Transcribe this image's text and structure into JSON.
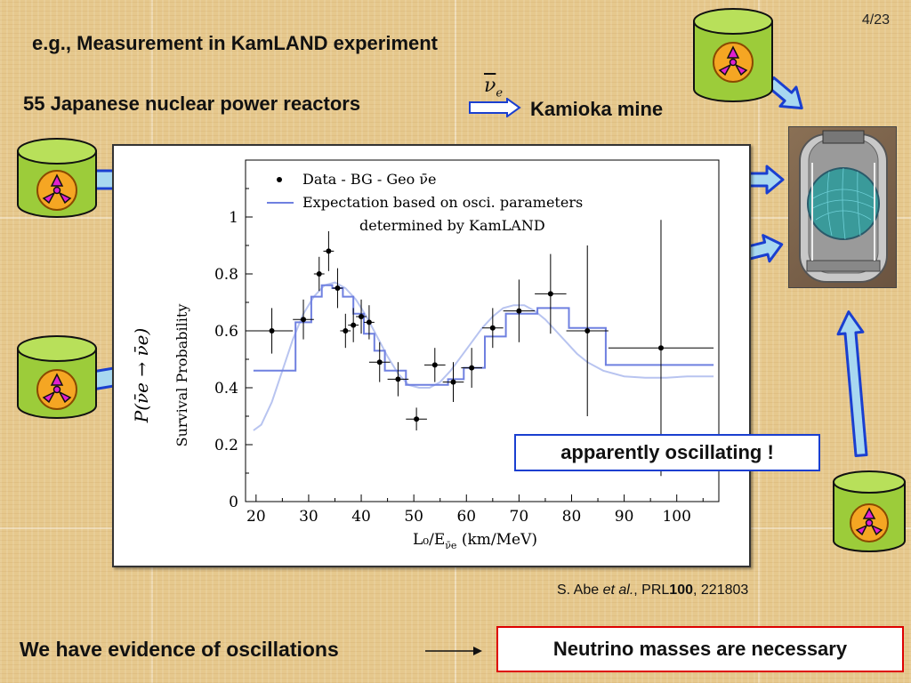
{
  "slide": {
    "page_number": "4/23",
    "title": "e.g., Measurement in KamLAND experiment",
    "reactors_label": "55 Japanese nuclear power reactors",
    "mine_label": "Kamioka mine",
    "nu_symbol": "ν",
    "nu_subscript": "e",
    "annotation": "apparently oscillating !",
    "citation_author": "S. Abe ",
    "citation_etal": "et al.",
    "citation_journal": ", PRL",
    "citation_volume": "100",
    "citation_page": ", 221803",
    "evidence": "We have evidence of oscillations",
    "conclusion": "Neutrino masses are necessary"
  },
  "colors": {
    "reactor_green": "#9ccc3a",
    "arrow_blue": "#1a3fd0",
    "arrow_fill": "#a8d8f0",
    "radiation_orange": "#f5a623",
    "radiation_magenta": "#e020d0",
    "expectation_line": "#6f80e0",
    "conclusion_border": "#dd0000"
  },
  "chart_data": {
    "type": "scatter",
    "xlabel": "L₀/E",
    "xlabel_sub": "ν̄e",
    "xlabel_unit": " (km/MeV)",
    "ylabel": "Survival Probability",
    "ylabel_math": "P(ν̄e → ν̄e)",
    "xlim": [
      18,
      108
    ],
    "ylim": [
      0,
      1.2
    ],
    "x_ticks": [
      20,
      30,
      40,
      50,
      60,
      70,
      80,
      90,
      100
    ],
    "x_tick_labels": [
      "20",
      "30",
      "40",
      "50",
      "60",
      "70",
      "80",
      "90",
      "100"
    ],
    "y_ticks": [
      0,
      0.2,
      0.4,
      0.6,
      0.8,
      1
    ],
    "y_tick_labels": [
      "0",
      "0.2",
      "0.4",
      "0.6",
      "0.8",
      "1"
    ],
    "legend": {
      "placement": "top",
      "data_label": "Data - BG - Geo ν̄e",
      "expectation_line1": "Expectation based on osci. parameters",
      "expectation_line2": "determined by KamLAND"
    },
    "series": [
      {
        "name": "Data - BG - Geo ν̄e",
        "kind": "points",
        "x": [
          23,
          29,
          32,
          33.8,
          35.5,
          37,
          38.5,
          40,
          41.5,
          43.5,
          47,
          50.5,
          54,
          57.5,
          61,
          65,
          70,
          76,
          83,
          97
        ],
        "y": [
          0.6,
          0.64,
          0.8,
          0.88,
          0.75,
          0.6,
          0.62,
          0.65,
          0.63,
          0.49,
          0.43,
          0.29,
          0.48,
          0.42,
          0.47,
          0.61,
          0.67,
          0.73,
          0.6,
          0.54
        ],
        "yerr": [
          0.08,
          0.07,
          0.06,
          0.07,
          0.07,
          0.06,
          0.06,
          0.06,
          0.06,
          0.07,
          0.06,
          0.04,
          0.06,
          0.07,
          0.07,
          0.07,
          0.11,
          0.14,
          0.3,
          0.45
        ],
        "xerr": [
          4,
          2,
          1,
          1,
          1,
          1,
          1,
          1,
          1,
          2,
          2,
          2,
          2,
          2,
          2,
          2,
          3,
          3,
          4,
          10
        ]
      },
      {
        "name": "Expectation (binned)",
        "kind": "step",
        "edges": [
          19.5,
          27.5,
          30.5,
          32.5,
          34.5,
          36.5,
          38.5,
          40.5,
          42.5,
          44.5,
          48.5,
          52.5,
          56.5,
          59.5,
          63.5,
          67.5,
          73.5,
          79.5,
          86.5,
          107
        ],
        "values": [
          0.46,
          0.63,
          0.72,
          0.76,
          0.75,
          0.72,
          0.66,
          0.59,
          0.53,
          0.46,
          0.41,
          0.41,
          0.43,
          0.47,
          0.58,
          0.66,
          0.68,
          0.61,
          0.48
        ]
      },
      {
        "name": "Expectation (curve)",
        "kind": "curve",
        "x": [
          19.5,
          21,
          23,
          25,
          27,
          29,
          31,
          33,
          35,
          37,
          39,
          41,
          43,
          45,
          47,
          49,
          51,
          53,
          55,
          57,
          59,
          61,
          63,
          65,
          67,
          69,
          71,
          73,
          75,
          77,
          79,
          81,
          83,
          86,
          90,
          94,
          98,
          102,
          107
        ],
        "y": [
          0.25,
          0.27,
          0.35,
          0.46,
          0.57,
          0.66,
          0.72,
          0.76,
          0.77,
          0.75,
          0.71,
          0.65,
          0.58,
          0.51,
          0.45,
          0.41,
          0.4,
          0.4,
          0.42,
          0.46,
          0.51,
          0.56,
          0.61,
          0.65,
          0.68,
          0.69,
          0.69,
          0.67,
          0.64,
          0.6,
          0.56,
          0.52,
          0.49,
          0.46,
          0.44,
          0.435,
          0.435,
          0.44,
          0.44
        ]
      }
    ]
  }
}
